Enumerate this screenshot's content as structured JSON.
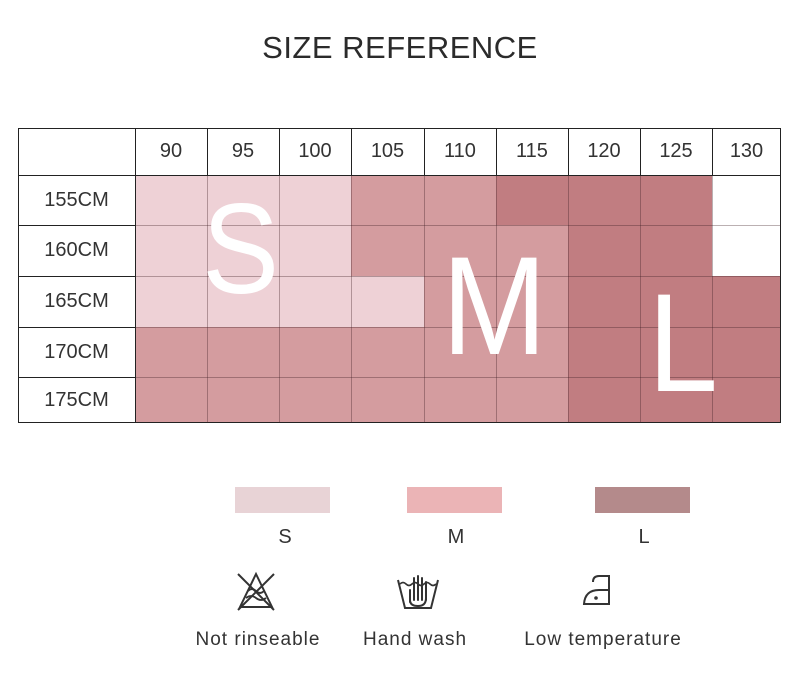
{
  "title": "SIZE REFERENCE",
  "table": {
    "columns": [
      "90",
      "95",
      "100",
      "105",
      "110",
      "115",
      "120",
      "125",
      "130"
    ],
    "rows": [
      {
        "label": "155CM",
        "cells": [
          "S",
          "S",
          "S",
          "M",
          "M",
          "L",
          "L",
          "L",
          ""
        ]
      },
      {
        "label": "160CM",
        "cells": [
          "S",
          "S",
          "S",
          "M",
          "M",
          "M",
          "L",
          "L",
          ""
        ]
      },
      {
        "label": "165CM",
        "cells": [
          "S",
          "S",
          "S",
          "S",
          "M",
          "M",
          "L",
          "L",
          "L"
        ]
      },
      {
        "label": "170CM",
        "cells": [
          "M",
          "M",
          "M",
          "M",
          "M",
          "M",
          "L",
          "L",
          "L"
        ]
      },
      {
        "label": "175CM",
        "cells": [
          "M",
          "M",
          "M",
          "M",
          "M",
          "M",
          "L",
          "L",
          "L"
        ]
      }
    ]
  },
  "overlay_letters": {
    "s": "S",
    "m": "M",
    "l": "L"
  },
  "legend": [
    {
      "label": "S",
      "color": "#e8d3d6"
    },
    {
      "label": "M",
      "color": "#ebb4b6"
    },
    {
      "label": "L",
      "color": "#b48a8b"
    }
  ],
  "cell_colors": {
    "S": "#eed1d6",
    "M": "#d49c9f",
    "L": "#c17d81",
    "": "#ffffff"
  },
  "care": [
    {
      "icon": "no-wring-icon",
      "label": "Not rinseable"
    },
    {
      "icon": "hand-wash-icon",
      "label": "Hand wash"
    },
    {
      "icon": "low-iron-icon",
      "label": "Low temperature"
    }
  ]
}
